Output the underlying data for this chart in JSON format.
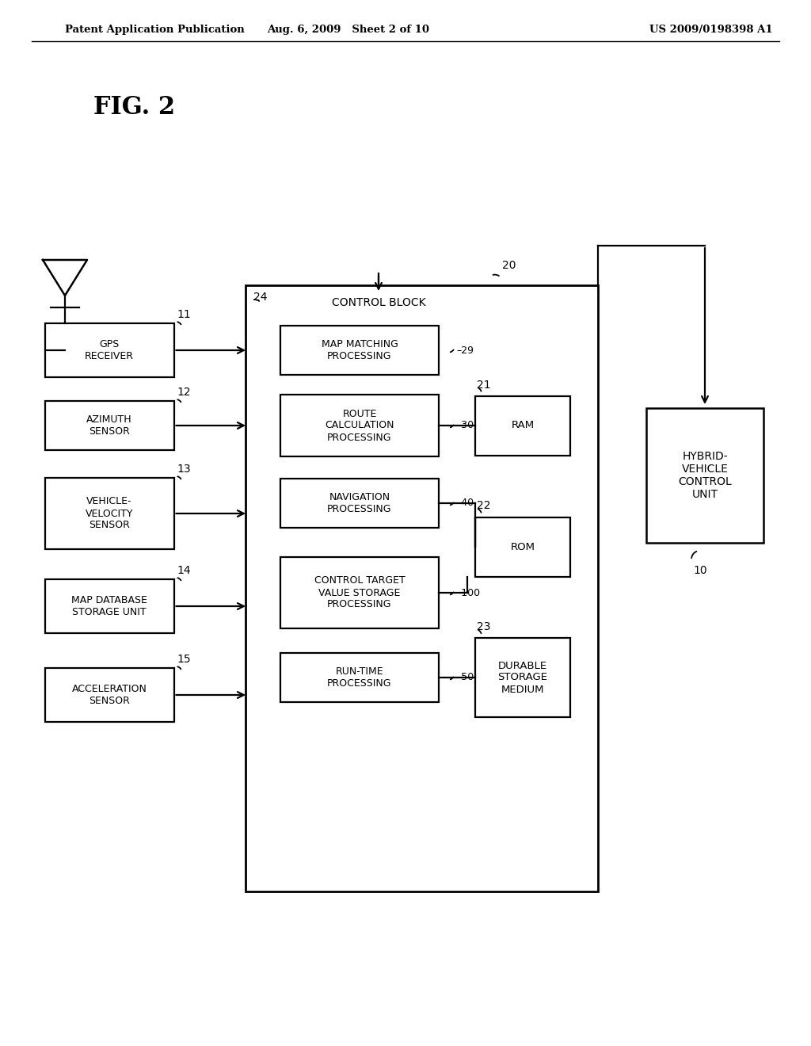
{
  "bg_color": "#ffffff",
  "header_left": "Patent Application Publication",
  "header_mid": "Aug. 6, 2009   Sheet 2 of 10",
  "header_right": "US 2009/0198398 A1",
  "fig_label": "FIG. 2"
}
